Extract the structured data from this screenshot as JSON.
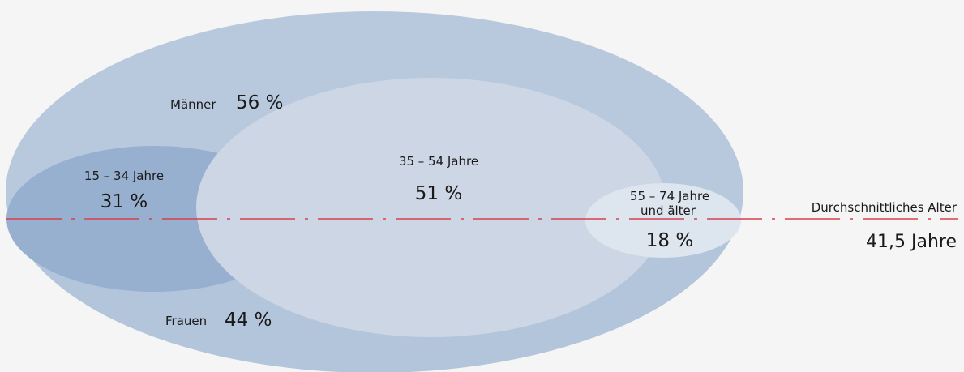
{
  "groups": {
    "maenner": {
      "label": "Männer",
      "value": "56 %"
    },
    "frauen": {
      "label": "Frauen",
      "value": "44 %"
    },
    "age_15_34": {
      "label": "15 – 34 Jahre",
      "value": "31 %"
    },
    "age_35_54": {
      "label": "35 – 54 Jahre",
      "value": "51 %"
    },
    "age_55_74": {
      "label_line1": "55 – 74 Jahre",
      "label_line2": "und älter",
      "value": "18 %"
    }
  },
  "average": {
    "label": "Durchschnittliches Alter",
    "value": "41,5 Jahre"
  },
  "colors": {
    "background": "#f5f5f5",
    "outer": "#b8c9de",
    "age_15_34": "#98b0cf",
    "age_35_54": "#ccd6e5",
    "age_55_74": "#dde5ee",
    "average_line": "#d6404f"
  }
}
